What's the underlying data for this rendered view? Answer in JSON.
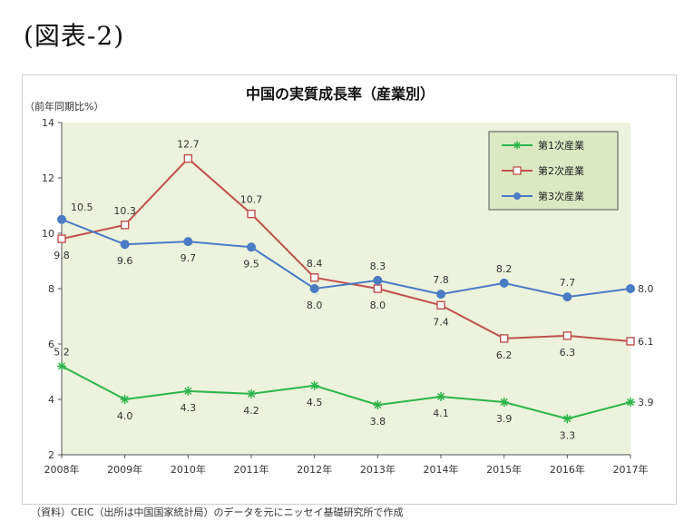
{
  "figure_label": "(図表-2)",
  "source_note": "（資料）CEIC（出所は中国国家統計局）のデータを元にニッセイ基礎研究所で作成",
  "chart_data": {
    "type": "line",
    "title": "中国の実質成長率（産業別）",
    "ylabel": "（前年同期比%）",
    "xlabel": "",
    "ylim": [
      2,
      14
    ],
    "yticks": [
      2,
      4,
      6,
      8,
      10,
      12,
      14
    ],
    "categories": [
      "2008年",
      "2009年",
      "2010年",
      "2011年",
      "2012年",
      "2013年",
      "2014年",
      "2015年",
      "2016年",
      "2017年"
    ],
    "grid": false,
    "plot_background": "#ecf2dc",
    "legend_position": "top-right",
    "legend_background": "#dbe8c3",
    "series": [
      {
        "name": "第1次産業",
        "color": "#2db44a",
        "marker": "asterisk",
        "values": [
          5.2,
          4.0,
          4.3,
          4.2,
          4.5,
          3.8,
          4.1,
          3.9,
          3.3,
          3.9
        ],
        "labels": [
          "5.2",
          "4.0",
          "4.3",
          "4.2",
          "4.5",
          "3.8",
          "4.1",
          "3.9",
          "3.3",
          "3.9"
        ],
        "label_pos": [
          "above",
          "below",
          "below",
          "below",
          "below",
          "below",
          "below",
          "below",
          "below",
          "right"
        ]
      },
      {
        "name": "第2次産業",
        "color": "#c0504d",
        "marker": "square-open",
        "values": [
          9.8,
          10.3,
          12.7,
          10.7,
          8.4,
          8.0,
          7.4,
          6.2,
          6.3,
          6.1
        ],
        "labels": [
          "9.8",
          "10.3",
          "12.7",
          "10.7",
          "8.4",
          "8.0",
          "7.4",
          "6.2",
          "6.3",
          "6.1"
        ],
        "label_pos": [
          "below",
          "above",
          "above",
          "above",
          "above",
          "below",
          "below",
          "below",
          "below",
          "right"
        ]
      },
      {
        "name": "第3次産業",
        "color": "#4a7bc4",
        "marker": "circle",
        "values": [
          10.5,
          9.6,
          9.7,
          9.5,
          8.0,
          8.3,
          7.8,
          8.2,
          7.7,
          8.0
        ],
        "labels": [
          "10.5",
          "9.6",
          "9.7",
          "9.5",
          "8.0",
          "8.3",
          "7.8",
          "8.2",
          "7.7",
          "8.0"
        ],
        "label_pos": [
          "above-right",
          "below",
          "below",
          "below",
          "below",
          "above",
          "above",
          "above",
          "above",
          "right"
        ]
      }
    ]
  }
}
